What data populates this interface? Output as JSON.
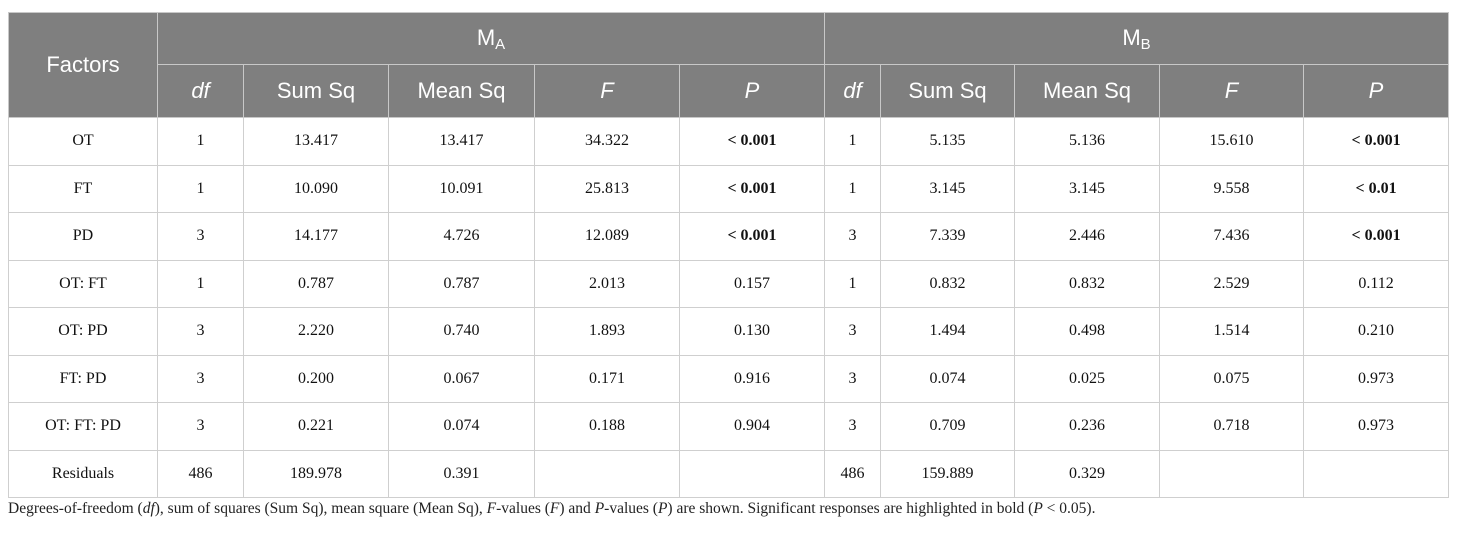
{
  "table": {
    "corner": "Factors",
    "groups": [
      {
        "main": "M",
        "sub": "A"
      },
      {
        "main": "M",
        "sub": "B"
      }
    ],
    "columns": [
      {
        "label": "df",
        "italic": true
      },
      {
        "label": "Sum Sq",
        "italic": false
      },
      {
        "label": "Mean Sq",
        "italic": false
      },
      {
        "label": "F",
        "italic": true
      },
      {
        "label": "P",
        "italic": true
      },
      {
        "label": "df",
        "italic": true
      },
      {
        "label": "Sum Sq",
        "italic": false
      },
      {
        "label": "Mean Sq",
        "italic": false
      },
      {
        "label": "F",
        "italic": true
      },
      {
        "label": "P",
        "italic": true
      }
    ],
    "rows": [
      {
        "factor": "OT",
        "cells": [
          "1",
          "13.417",
          "13.417",
          "34.322",
          {
            "text": "< 0.001",
            "bold": true
          },
          "1",
          "5.135",
          "5.136",
          "15.610",
          {
            "text": "< 0.001",
            "bold": true
          }
        ]
      },
      {
        "factor": "FT",
        "cells": [
          "1",
          "10.090",
          "10.091",
          "25.813",
          {
            "text": "< 0.001",
            "bold": true
          },
          "1",
          "3.145",
          "3.145",
          "9.558",
          {
            "text": "< 0.01",
            "bold": true
          }
        ]
      },
      {
        "factor": "PD",
        "cells": [
          "3",
          "14.177",
          "4.726",
          "12.089",
          {
            "text": "< 0.001",
            "bold": true
          },
          "3",
          "7.339",
          "2.446",
          "7.436",
          {
            "text": "< 0.001",
            "bold": true
          }
        ]
      },
      {
        "factor": "OT: FT",
        "cells": [
          "1",
          "0.787",
          "0.787",
          "2.013",
          "0.157",
          "1",
          "0.832",
          "0.832",
          "2.529",
          "0.112"
        ]
      },
      {
        "factor": "OT: PD",
        "cells": [
          "3",
          "2.220",
          "0.740",
          "1.893",
          "0.130",
          "3",
          "1.494",
          "0.498",
          "1.514",
          "0.210"
        ]
      },
      {
        "factor": "FT: PD",
        "cells": [
          "3",
          "0.200",
          "0.067",
          "0.171",
          "0.916",
          "3",
          "0.074",
          "0.025",
          "0.075",
          "0.973"
        ]
      },
      {
        "factor": "OT: FT: PD",
        "cells": [
          "3",
          "0.221",
          "0.074",
          "0.188",
          "0.904",
          "3",
          "0.709",
          "0.236",
          "0.718",
          "0.973"
        ]
      },
      {
        "factor": "Residuals",
        "cells": [
          "486",
          "189.978",
          "0.391",
          null,
          null,
          "486",
          "159.889",
          "0.329",
          null,
          null
        ]
      }
    ]
  },
  "footnote": [
    {
      "text": "Degrees-of-freedom (",
      "italic": false
    },
    {
      "text": "df",
      "italic": true
    },
    {
      "text": "), sum of squares (Sum Sq), mean square (Mean Sq), ",
      "italic": false
    },
    {
      "text": "F",
      "italic": true
    },
    {
      "text": "-values (",
      "italic": false
    },
    {
      "text": "F",
      "italic": true
    },
    {
      "text": ") and ",
      "italic": false
    },
    {
      "text": "P",
      "italic": true
    },
    {
      "text": "-values (",
      "italic": false
    },
    {
      "text": "P",
      "italic": true
    },
    {
      "text": ") are shown. Significant responses are highlighted in bold (",
      "italic": false
    },
    {
      "text": "P",
      "italic": true
    },
    {
      "text": " < 0.05).",
      "italic": false
    }
  ]
}
